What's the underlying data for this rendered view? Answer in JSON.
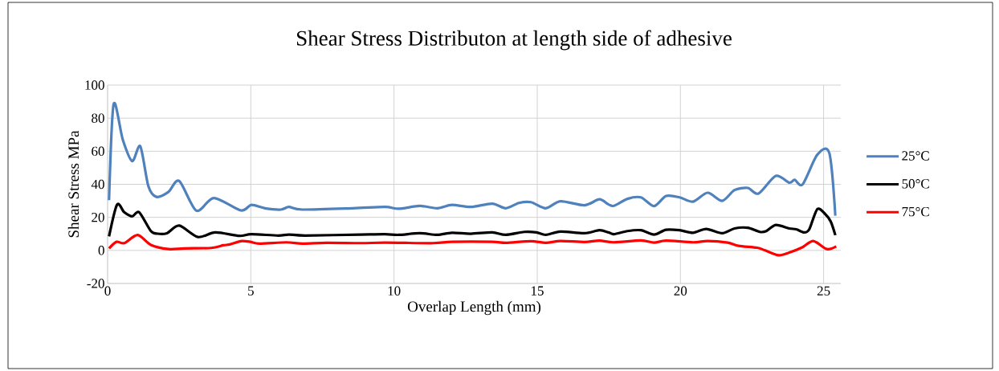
{
  "chart_data": {
    "type": "line",
    "title": "Shear Stress Distributon at length side of adhesive",
    "xlabel": "Overlap Length (mm)",
    "ylabel": "Shear Stress MPa",
    "xlim": [
      0,
      25.6
    ],
    "xticks": [
      0,
      5,
      10,
      15,
      20,
      25
    ],
    "ylim": [
      -20,
      100
    ],
    "yticks": [
      -20,
      0,
      20,
      40,
      60,
      80,
      100
    ],
    "grid": true,
    "legend": "right",
    "series": [
      {
        "name": "25°C",
        "color": "#4f81bd",
        "x": [
          0.05,
          0.21,
          0.53,
          0.86,
          1.14,
          1.42,
          1.7,
          2.12,
          2.5,
          3.1,
          3.71,
          4.65,
          5.02,
          5.49,
          6.05,
          6.33,
          6.8,
          8.57,
          9.69,
          10.16,
          10.9,
          11.51,
          12.02,
          12.68,
          13.43,
          13.9,
          14.36,
          14.78,
          15.3,
          15.81,
          16.65,
          17.17,
          17.49,
          17.68,
          18.15,
          18.62,
          19.08,
          19.5,
          19.97,
          20.44,
          20.95,
          21.46,
          21.89,
          22.35,
          22.73,
          23.33,
          23.8,
          23.99,
          24.27,
          24.78,
          25.2,
          25.41
        ],
        "values": [
          30.4,
          88.5,
          67,
          54,
          63,
          39,
          32.4,
          35.3,
          42,
          24,
          31.7,
          24.2,
          27.5,
          25.5,
          24.7,
          26.3,
          24.7,
          25.5,
          26.3,
          25.2,
          26.9,
          25.5,
          27.5,
          26.3,
          28.3,
          25.5,
          28.7,
          29.2,
          25.5,
          29.7,
          27.3,
          30.9,
          27.8,
          27,
          31.2,
          32.1,
          26.8,
          32.9,
          32.1,
          29.5,
          34.9,
          30,
          36.5,
          37.8,
          34.4,
          45.1,
          41,
          42.7,
          40,
          57.9,
          58.9,
          21
        ]
      },
      {
        "name": "50°C",
        "color": "#000000",
        "x": [
          0.05,
          0.33,
          0.58,
          0.86,
          1.1,
          1.51,
          1.75,
          2.07,
          2.5,
          3.15,
          3.76,
          4.6,
          5.02,
          5.95,
          6.33,
          6.89,
          8.85,
          9.69,
          10.16,
          10.9,
          11.51,
          12.02,
          12.68,
          13.43,
          13.9,
          14.55,
          14.97,
          15.3,
          15.81,
          16.65,
          17.17,
          17.49,
          17.68,
          18.15,
          18.62,
          19.08,
          19.5,
          19.97,
          20.44,
          20.9,
          21.46,
          21.89,
          22.35,
          22.77,
          23,
          23.33,
          23.8,
          24.04,
          24.32,
          24.5,
          24.78,
          25.06,
          25.25,
          25.41
        ],
        "values": [
          8.5,
          27.7,
          23.1,
          20.6,
          23.1,
          11.7,
          10.1,
          10.4,
          15,
          8.1,
          10.9,
          8.8,
          9.8,
          9,
          9.6,
          9,
          9.6,
          9.8,
          9.4,
          10.4,
          9.4,
          10.7,
          10.1,
          10.9,
          9.4,
          11.2,
          10.9,
          9.4,
          11.4,
          10.4,
          12.2,
          10.9,
          9.8,
          11.7,
          12.2,
          9.6,
          12.5,
          12.2,
          10.7,
          13,
          10.4,
          13.3,
          13.7,
          11.2,
          11.7,
          15.4,
          13.3,
          12.8,
          10.9,
          12.8,
          25,
          21.9,
          17.4,
          9.2
        ]
      },
      {
        "name": "75°C",
        "color": "#ff0000",
        "x": [
          0.05,
          0.31,
          0.58,
          1.05,
          1.51,
          2.12,
          2.68,
          3.62,
          4.04,
          4.27,
          4.65,
          4.98,
          5.3,
          6.24,
          6.8,
          7.64,
          8.85,
          9.69,
          11.37,
          12.02,
          13.43,
          13.9,
          14.78,
          15.3,
          15.81,
          16.65,
          17.17,
          17.68,
          18.62,
          19.08,
          19.5,
          20.44,
          20.95,
          21.65,
          22.03,
          22.68,
          22.96,
          23.43,
          23.8,
          24.27,
          24.64,
          25.11,
          25.44
        ],
        "values": [
          1.2,
          5.2,
          4.4,
          9.3,
          3.3,
          0.8,
          1.2,
          1.5,
          3.1,
          3.6,
          5.6,
          5.2,
          4.1,
          4.9,
          4.1,
          4.6,
          4.4,
          4.7,
          4.4,
          5.2,
          5.2,
          4.6,
          5.6,
          4.6,
          5.7,
          5.1,
          5.9,
          4.9,
          6,
          4.7,
          5.9,
          4.9,
          5.7,
          4.7,
          2.8,
          1.6,
          0,
          -2.9,
          -1.3,
          2,
          5.7,
          0.8,
          2.4
        ]
      }
    ]
  }
}
